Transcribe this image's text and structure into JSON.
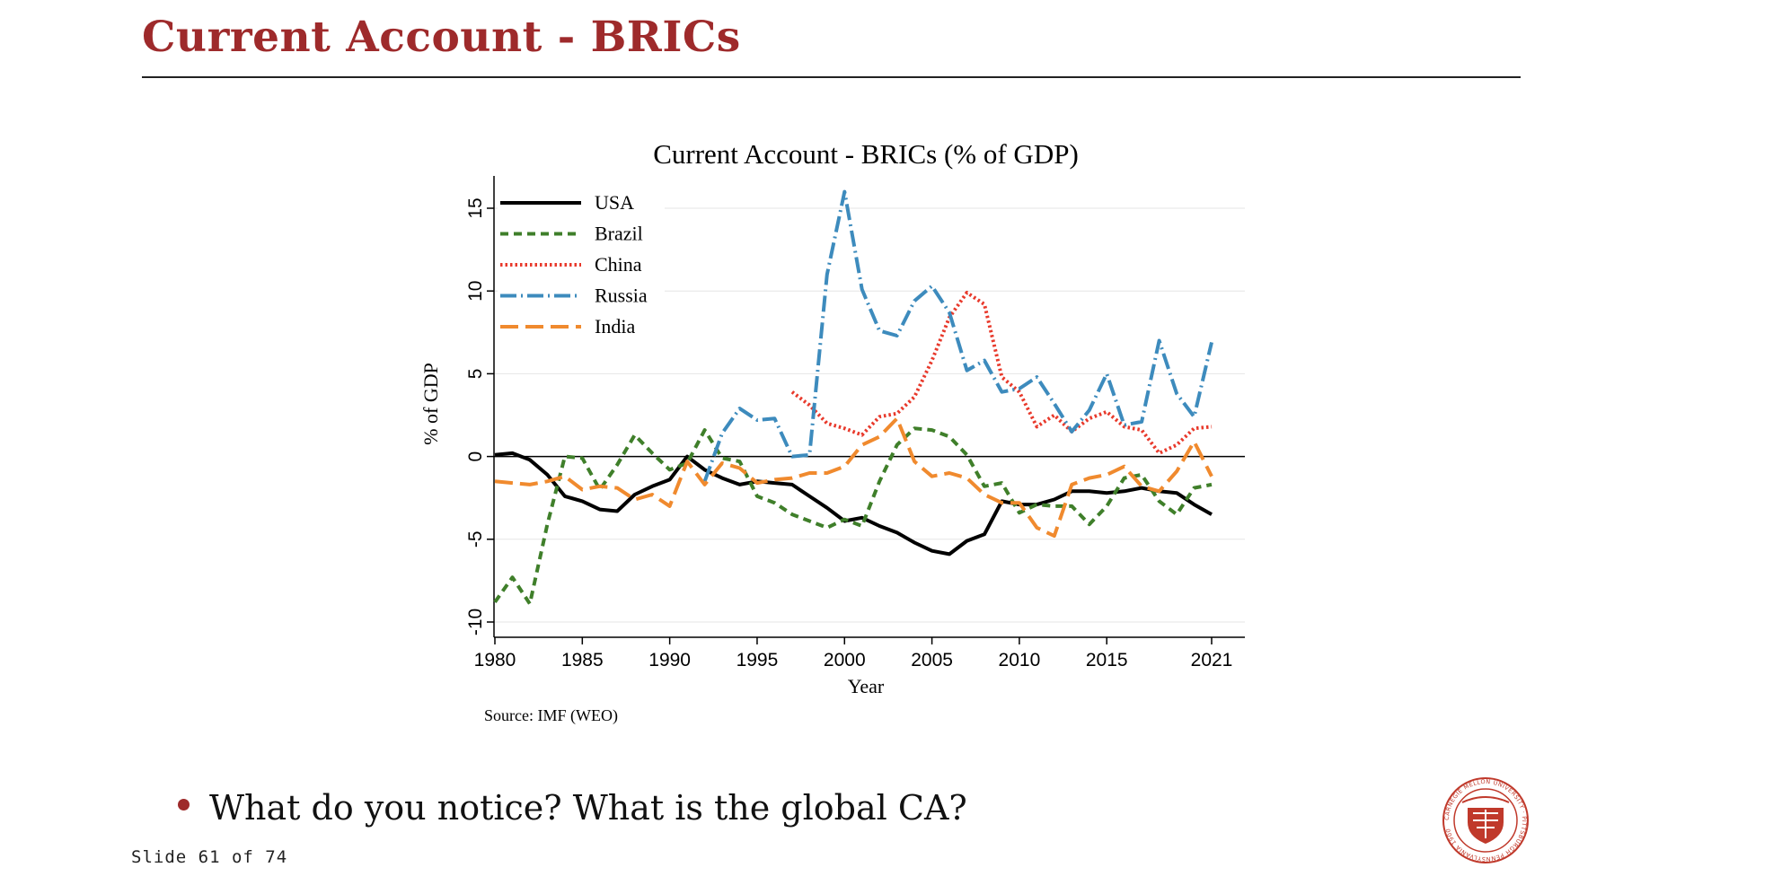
{
  "slide": {
    "title": "Current Account - BRICs",
    "bullet": "What do you notice? What is the global CA?",
    "slide_number": "Slide 61 of 74",
    "logo_text": "CARNEGIE MELLON UNIVERSITY · PITTSBURGH PENNSYLVANIA 1900",
    "accent_color": "#9e2a2b"
  },
  "chart_data": {
    "type": "line",
    "title": "Current Account - BRICs (% of GDP)",
    "xlabel": "Year",
    "ylabel": "% of GDP",
    "note": "Source: IMF (WEO)",
    "xlim": [
      1980,
      2021
    ],
    "ylim": [
      -10,
      15
    ],
    "xticks": [
      1980,
      1985,
      1990,
      1995,
      2000,
      2005,
      2010,
      2015,
      2021
    ],
    "yticks": [
      -10,
      -5,
      0,
      5,
      10,
      15
    ],
    "grid": true,
    "legend_position": "top-left",
    "series": [
      {
        "name": "USA",
        "color": "#000000",
        "style": "solid",
        "x": [
          1980,
          1981,
          1982,
          1983,
          1984,
          1985,
          1986,
          1987,
          1988,
          1989,
          1990,
          1991,
          1992,
          1993,
          1994,
          1995,
          1996,
          1997,
          1998,
          1999,
          2000,
          2001,
          2002,
          2003,
          2004,
          2005,
          2006,
          2007,
          2008,
          2009,
          2010,
          2011,
          2012,
          2013,
          2014,
          2015,
          2016,
          2017,
          2018,
          2019,
          2020,
          2021
        ],
        "y": [
          0.1,
          0.2,
          -0.2,
          -1.1,
          -2.4,
          -2.7,
          -3.2,
          -3.3,
          -2.3,
          -1.8,
          -1.4,
          0.0,
          -0.8,
          -1.3,
          -1.7,
          -1.5,
          -1.6,
          -1.7,
          -2.4,
          -3.1,
          -3.9,
          -3.7,
          -4.2,
          -4.6,
          -5.2,
          -5.7,
          -5.9,
          -5.1,
          -4.7,
          -2.7,
          -2.9,
          -2.9,
          -2.6,
          -2.1,
          -2.1,
          -2.2,
          -2.1,
          -1.9,
          -2.1,
          -2.2,
          -2.9,
          -3.5
        ]
      },
      {
        "name": "Brazil",
        "color": "#3f7f2a",
        "style": "dashed",
        "x": [
          1980,
          1981,
          1982,
          1983,
          1984,
          1985,
          1986,
          1987,
          1988,
          1989,
          1990,
          1991,
          1992,
          1993,
          1994,
          1995,
          1996,
          1997,
          1998,
          1999,
          2000,
          2001,
          2002,
          2003,
          2004,
          2005,
          2006,
          2007,
          2008,
          2009,
          2010,
          2011,
          2012,
          2013,
          2014,
          2015,
          2016,
          2017,
          2018,
          2019,
          2020,
          2021
        ],
        "y": [
          -8.8,
          -7.3,
          -8.9,
          -4.1,
          0.0,
          -0.1,
          -2.0,
          -0.5,
          1.3,
          0.2,
          -0.8,
          -0.4,
          1.6,
          -0.1,
          -0.3,
          -2.4,
          -2.8,
          -3.5,
          -3.9,
          -4.3,
          -3.8,
          -4.2,
          -1.5,
          0.7,
          1.7,
          1.6,
          1.2,
          0.1,
          -1.8,
          -1.6,
          -3.4,
          -2.9,
          -3.0,
          -3.0,
          -4.1,
          -3.0,
          -1.3,
          -1.1,
          -2.7,
          -3.5,
          -1.9,
          -1.7
        ]
      },
      {
        "name": "China",
        "color": "#e8392b",
        "style": "dotted",
        "x": [
          1997,
          1998,
          1999,
          2000,
          2001,
          2002,
          2003,
          2004,
          2005,
          2006,
          2007,
          2008,
          2009,
          2010,
          2011,
          2012,
          2013,
          2014,
          2015,
          2016,
          2017,
          2018,
          2019,
          2020,
          2021
        ],
        "y": [
          3.9,
          3.1,
          2.0,
          1.7,
          1.3,
          2.4,
          2.6,
          3.6,
          5.8,
          8.4,
          9.9,
          9.2,
          4.8,
          3.9,
          1.8,
          2.5,
          1.5,
          2.3,
          2.7,
          1.8,
          1.6,
          0.2,
          0.7,
          1.7,
          1.8
        ]
      },
      {
        "name": "Russia",
        "color": "#3d8bbd",
        "style": "dashdot",
        "x": [
          1992,
          1993,
          1994,
          1995,
          1996,
          1997,
          1998,
          1999,
          2000,
          2001,
          2002,
          2003,
          2004,
          2005,
          2006,
          2007,
          2008,
          2009,
          2010,
          2011,
          2012,
          2013,
          2014,
          2015,
          2016,
          2017,
          2018,
          2019,
          2020,
          2021
        ],
        "y": [
          -1.5,
          1.4,
          2.9,
          2.2,
          2.3,
          0.0,
          0.1,
          11.0,
          16.0,
          10.1,
          7.6,
          7.3,
          9.4,
          10.3,
          8.7,
          5.2,
          5.8,
          3.9,
          4.1,
          4.8,
          3.2,
          1.5,
          2.8,
          5.0,
          1.9,
          2.1,
          7.0,
          3.8,
          2.4,
          6.9
        ]
      },
      {
        "name": "India",
        "color": "#f08a2e",
        "style": "longdash",
        "x": [
          1980,
          1981,
          1982,
          1983,
          1984,
          1985,
          1986,
          1987,
          1988,
          1989,
          1990,
          1991,
          1992,
          1993,
          1994,
          1995,
          1996,
          1997,
          1998,
          1999,
          2000,
          2001,
          2002,
          2003,
          2004,
          2005,
          2006,
          2007,
          2008,
          2009,
          2010,
          2011,
          2012,
          2013,
          2014,
          2015,
          2016,
          2017,
          2018,
          2019,
          2020,
          2021
        ],
        "y": [
          -1.5,
          -1.6,
          -1.7,
          -1.5,
          -1.2,
          -2.0,
          -1.8,
          -1.9,
          -2.6,
          -2.3,
          -3.0,
          -0.3,
          -1.7,
          -0.4,
          -0.7,
          -1.6,
          -1.4,
          -1.3,
          -1.0,
          -1.0,
          -0.6,
          0.7,
          1.2,
          2.3,
          -0.3,
          -1.2,
          -1.0,
          -1.3,
          -2.3,
          -2.8,
          -2.8,
          -4.3,
          -4.8,
          -1.7,
          -1.3,
          -1.1,
          -0.6,
          -1.8,
          -2.1,
          -0.9,
          0.9,
          -1.2
        ]
      }
    ]
  }
}
